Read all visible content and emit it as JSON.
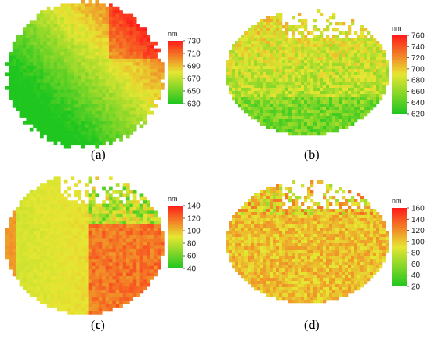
{
  "chart_data": [
    {
      "type": "heatmap",
      "label": "a",
      "unit": "nm",
      "colorbar": {
        "min": 630,
        "max": 730,
        "ticks": [
          730,
          710,
          690,
          670,
          650,
          630
        ]
      },
      "colors": {
        "low": "#1fc61f",
        "mid": "#e6e632",
        "high": "#ff1a1a"
      },
      "pattern": "high in upper-right, medium diagonal band, low in lower-left"
    },
    {
      "type": "heatmap",
      "label": "b",
      "unit": "nm",
      "colorbar": {
        "min": 620,
        "max": 760,
        "ticks": [
          760,
          740,
          720,
          700,
          680,
          660,
          640,
          620
        ]
      },
      "colors": {
        "low": "#1fc61f",
        "mid": "#e6e632",
        "high": "#ff1a1a"
      },
      "pattern": "mostly medium-low, lower values toward bottom"
    },
    {
      "type": "heatmap",
      "label": "c",
      "unit": "nm",
      "colorbar": {
        "min": 40,
        "max": 140,
        "ticks": [
          140,
          120,
          100,
          80,
          60,
          40
        ]
      },
      "colors": {
        "low": "#1fc61f",
        "mid": "#e6e632",
        "high": "#ff1a1a"
      },
      "pattern": "left half medium, right half high with lower values in upper-right"
    },
    {
      "type": "heatmap",
      "label": "d",
      "unit": "nm",
      "colorbar": {
        "min": 20,
        "max": 160,
        "ticks": [
          160,
          140,
          120,
          100,
          80,
          60,
          40,
          20
        ]
      },
      "colors": {
        "low": "#1fc61f",
        "mid": "#e6e632",
        "high": "#ff1a1a"
      },
      "pattern": "uniform medium with speckles"
    }
  ]
}
